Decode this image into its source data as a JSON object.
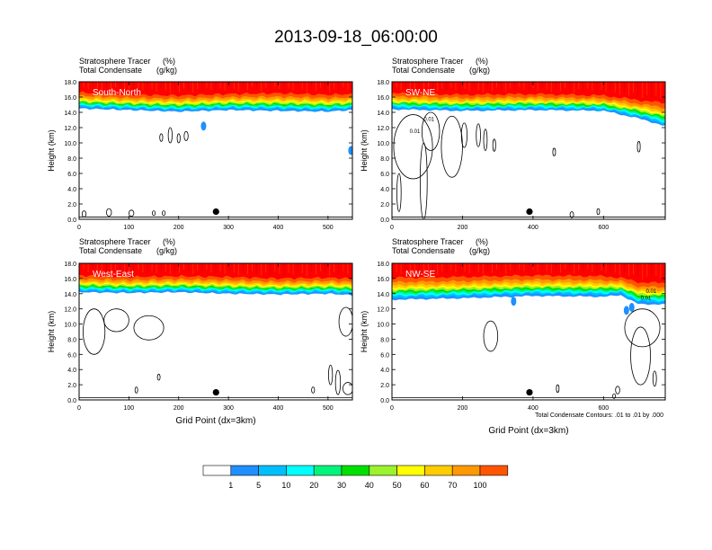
{
  "title": "2013-09-18_06:00:00",
  "panel_header": {
    "line1_label": "Stratosphere Tracer",
    "line1_unit": "(%)",
    "line2_label": "Total Condensate",
    "line2_unit": "(g/kg)"
  },
  "contour_note": "Total Condensate Contours: .01 to .01 by .000",
  "colors": {
    "marker": "#000000",
    "contour": "#000000",
    "levels": [
      "#ffffff",
      "#1e90ff",
      "#00bfff",
      "#00ffff",
      "#00f57a",
      "#00e000",
      "#9bf22d",
      "#ffff00",
      "#ffcc00",
      "#ff9900",
      "#ff5500",
      "#ff0000"
    ]
  },
  "colorbar": {
    "labels": [
      "1",
      "5",
      "10",
      "20",
      "30",
      "40",
      "50",
      "60",
      "70",
      "100"
    ]
  },
  "chart_data": [
    {
      "type": "heatmap",
      "panel": "South-North",
      "ylabel": "Height (km)",
      "xlabel": "",
      "xlim": [
        0,
        549
      ],
      "ylim": [
        0,
        18
      ],
      "xticks": [
        0,
        100,
        200,
        300,
        400,
        500
      ],
      "yticks": [
        0,
        2,
        4,
        6,
        8,
        10,
        12,
        14,
        16,
        18
      ],
      "marker_x": 275,
      "marker_y": 1.0,
      "tracer_profile": {
        "x": [
          0,
          100,
          200,
          300,
          400,
          500,
          549
        ],
        "base_km": [
          14.5,
          14.3,
          14.1,
          14.3,
          14.2,
          14.1,
          14.3
        ],
        "top_red_km": [
          16.6,
          16.3,
          16.2,
          16.4,
          16.5,
          16.3,
          16.4
        ]
      },
      "blue_patches": [
        {
          "x": 250,
          "y": 12.2
        },
        {
          "x": 546,
          "y": 9.0
        }
      ],
      "condensate_contours": [
        {
          "cx": 165,
          "cy": 10.7,
          "rx": 3,
          "ry": 0.5
        },
        {
          "cx": 183,
          "cy": 11.0,
          "rx": 4,
          "ry": 1.0
        },
        {
          "cx": 200,
          "cy": 10.6,
          "rx": 3,
          "ry": 0.6
        },
        {
          "cx": 215,
          "cy": 10.9,
          "rx": 4,
          "ry": 0.6
        },
        {
          "cx": 10,
          "cy": 0.7,
          "rx": 4,
          "ry": 0.4
        },
        {
          "cx": 60,
          "cy": 0.9,
          "rx": 5,
          "ry": 0.5
        },
        {
          "cx": 105,
          "cy": 0.8,
          "rx": 5,
          "ry": 0.4
        },
        {
          "cx": 150,
          "cy": 0.8,
          "rx": 3,
          "ry": 0.3
        },
        {
          "cx": 170,
          "cy": 0.8,
          "rx": 3,
          "ry": 0.3
        }
      ]
    },
    {
      "type": "heatmap",
      "panel": "SW-NE",
      "ylabel": "Height (km)",
      "xlabel": "",
      "xlim": [
        0,
        775
      ],
      "ylim": [
        0,
        18
      ],
      "xticks": [
        0,
        200,
        400,
        600
      ],
      "yticks": [
        0,
        2,
        4,
        6,
        8,
        10,
        12,
        14,
        16,
        18
      ],
      "marker_x": 390,
      "marker_y": 1.0,
      "contour_labels": [
        {
          "text": "0.01",
          "x": 105,
          "y": 12.9
        },
        {
          "text": "0.01",
          "x": 65,
          "y": 11.3
        }
      ],
      "tracer_profile": {
        "x": [
          0,
          200,
          400,
          600,
          700,
          775
        ],
        "base_km": [
          14.4,
          14.2,
          14.3,
          14.2,
          13.2,
          12.2
        ],
        "top_red_km": [
          16.5,
          16.3,
          16.4,
          16.2,
          15.6,
          15.2
        ]
      },
      "blue_patches": [],
      "condensate_contours": [
        {
          "cx": 60,
          "cy": 9.5,
          "rx": 55,
          "ry": 4.2
        },
        {
          "cx": 110,
          "cy": 11.5,
          "rx": 25,
          "ry": 2.5
        },
        {
          "cx": 170,
          "cy": 9.5,
          "rx": 30,
          "ry": 4.0
        },
        {
          "cx": 205,
          "cy": 11.0,
          "rx": 8,
          "ry": 1.6
        },
        {
          "cx": 245,
          "cy": 11.0,
          "rx": 6,
          "ry": 1.5
        },
        {
          "cx": 265,
          "cy": 10.4,
          "rx": 5,
          "ry": 1.4
        },
        {
          "cx": 290,
          "cy": 9.7,
          "rx": 4,
          "ry": 0.8
        },
        {
          "cx": 20,
          "cy": 3.5,
          "rx": 6,
          "ry": 2.5
        },
        {
          "cx": 90,
          "cy": 5.0,
          "rx": 10,
          "ry": 5.0
        },
        {
          "cx": 460,
          "cy": 8.8,
          "rx": 3,
          "ry": 0.5
        },
        {
          "cx": 700,
          "cy": 9.5,
          "rx": 4,
          "ry": 0.7
        },
        {
          "cx": 510,
          "cy": 0.6,
          "rx": 5,
          "ry": 0.4
        },
        {
          "cx": 585,
          "cy": 1.0,
          "rx": 3,
          "ry": 0.4
        }
      ]
    },
    {
      "type": "heatmap",
      "panel": "West-East",
      "ylabel": "Height (km)",
      "xlabel": "Grid Point (dx=3km)",
      "xlim": [
        0,
        549
      ],
      "ylim": [
        0,
        18
      ],
      "xticks": [
        0,
        100,
        200,
        300,
        400,
        500
      ],
      "yticks": [
        0,
        2,
        4,
        6,
        8,
        10,
        12,
        14,
        16,
        18
      ],
      "marker_x": 275,
      "marker_y": 1.0,
      "tracer_profile": {
        "x": [
          0,
          100,
          200,
          300,
          400,
          500,
          549
        ],
        "base_km": [
          14.2,
          14.1,
          14.2,
          14.0,
          13.9,
          14.0,
          13.8
        ],
        "top_red_km": [
          16.4,
          16.2,
          16.3,
          16.2,
          16.0,
          16.1,
          16.0
        ]
      },
      "blue_patches": [],
      "condensate_contours": [
        {
          "cx": 30,
          "cy": 9.0,
          "rx": 22,
          "ry": 3.0
        },
        {
          "cx": 75,
          "cy": 10.5,
          "rx": 25,
          "ry": 1.5
        },
        {
          "cx": 140,
          "cy": 9.5,
          "rx": 30,
          "ry": 1.6
        },
        {
          "cx": 160,
          "cy": 3.0,
          "rx": 2,
          "ry": 0.4
        },
        {
          "cx": 115,
          "cy": 1.3,
          "rx": 2,
          "ry": 0.4
        },
        {
          "cx": 536,
          "cy": 10.3,
          "rx": 14,
          "ry": 1.9
        },
        {
          "cx": 505,
          "cy": 3.3,
          "rx": 4,
          "ry": 1.3
        },
        {
          "cx": 520,
          "cy": 2.3,
          "rx": 5,
          "ry": 1.6
        },
        {
          "cx": 540,
          "cy": 1.5,
          "rx": 10,
          "ry": 0.8
        },
        {
          "cx": 470,
          "cy": 1.3,
          "rx": 3,
          "ry": 0.4
        }
      ]
    },
    {
      "type": "heatmap",
      "panel": "NW-SE",
      "ylabel": "Height (km)",
      "xlabel": "Grid Point (dx=3km)",
      "xlim": [
        0,
        775
      ],
      "ylim": [
        0,
        18
      ],
      "xticks": [
        0,
        200,
        400,
        600
      ],
      "yticks": [
        0,
        2,
        4,
        6,
        8,
        10,
        12,
        14,
        16,
        18
      ],
      "marker_x": 390,
      "marker_y": 1.0,
      "contour_labels": [
        {
          "text": "0.01",
          "x": 720,
          "y": 13.2
        },
        {
          "text": "0.01",
          "x": 735,
          "y": 14.1
        }
      ],
      "tracer_profile": {
        "x": [
          0,
          200,
          400,
          600,
          650,
          700,
          775
        ],
        "base_km": [
          13.2,
          13.4,
          13.7,
          13.6,
          13.8,
          12.6,
          12.6
        ],
        "top_red_km": [
          16.1,
          16.2,
          16.4,
          16.3,
          16.1,
          15.5,
          15.4
        ]
      },
      "blue_patches": [
        {
          "x": 345,
          "y": 13.0
        },
        {
          "x": 665,
          "y": 11.8
        },
        {
          "x": 680,
          "y": 12.2
        }
      ],
      "condensate_contours": [
        {
          "cx": 280,
          "cy": 8.4,
          "rx": 20,
          "ry": 2.0
        },
        {
          "cx": 710,
          "cy": 9.5,
          "rx": 50,
          "ry": 2.5
        },
        {
          "cx": 705,
          "cy": 5.8,
          "rx": 28,
          "ry": 3.8
        },
        {
          "cx": 640,
          "cy": 1.3,
          "rx": 6,
          "ry": 0.5
        },
        {
          "cx": 630,
          "cy": 0.5,
          "rx": 4,
          "ry": 0.3
        },
        {
          "cx": 470,
          "cy": 1.5,
          "rx": 3,
          "ry": 0.5
        },
        {
          "cx": 745,
          "cy": 2.8,
          "rx": 5,
          "ry": 1.0
        }
      ]
    }
  ]
}
